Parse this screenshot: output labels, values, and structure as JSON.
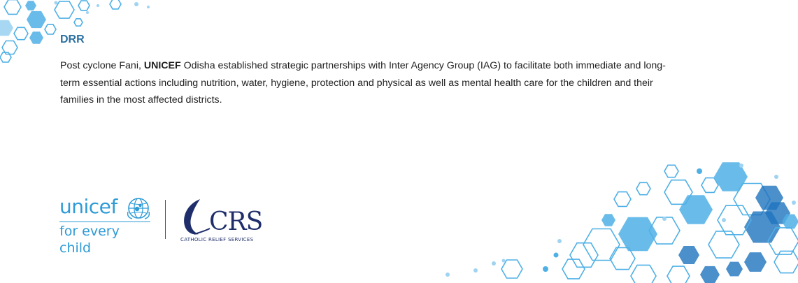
{
  "section": {
    "title": "DRR",
    "paragraph_parts": [
      "Post cyclone Fani, ",
      "UNICEF",
      " Odisha established strategic partnerships with Inter Agency Group (IAG) to facilitate both immediate and long-term essential actions including nutrition, water, hygiene, protection and physical as well as mental health care for the children and their families in the most affected districts."
    ]
  },
  "logos": {
    "unicef": {
      "wordmark": "unicef",
      "tagline": "for every child",
      "icon": "globe-icon"
    },
    "crs": {
      "wordmark": "CRS",
      "full_name": "CATHOLIC RELIEF SERVICES",
      "icon": "crs-flame-icon"
    }
  },
  "colors": {
    "title": "#2a6fa0",
    "unicef_blue": "#2e9bd6",
    "crs_navy": "#1f2e6b",
    "hex_light": "#9fd3f2",
    "hex_mid": "#4fb0e6",
    "hex_dark": "#1e73be"
  }
}
